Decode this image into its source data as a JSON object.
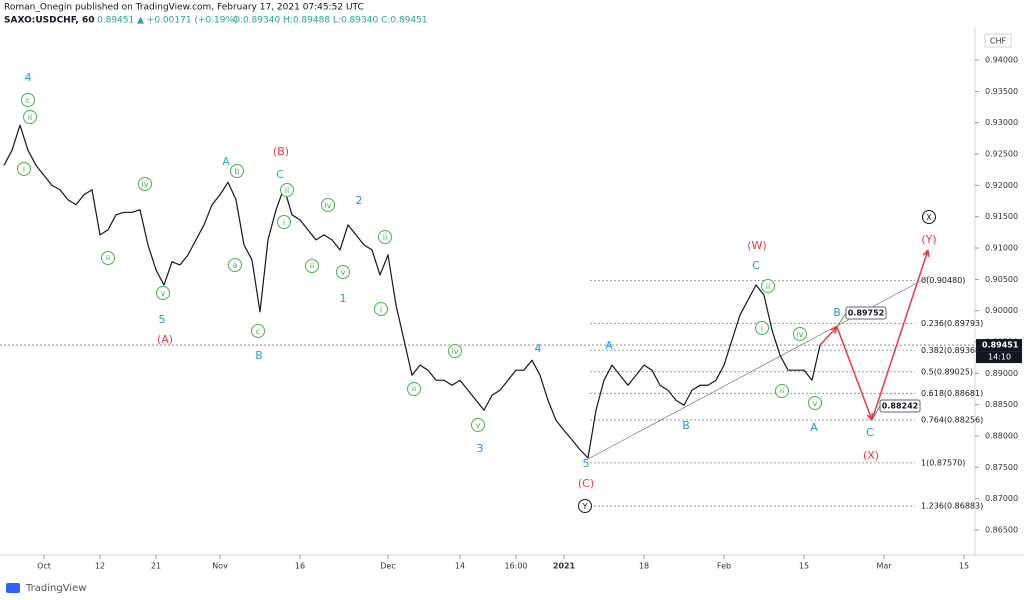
{
  "chart_data": {
    "type": "line",
    "header": {
      "publisher": "Roman_Onegin published on TradingView.com, February 17, 2021 07:45:52 UTC",
      "symbol": "SAXO:USDCHF, 60",
      "last": "0.89451",
      "change": "▲ +0.00171 (+0.19%)",
      "ohlc": "O:0.89340 H:0.89488 L:0.89340 C:0.89451"
    },
    "currency": "CHF",
    "price_label": "0.89451",
    "time_label": "14:10",
    "logo": "TradingView",
    "ylim": [
      0.861,
      0.9448
    ],
    "yticks": [
      {
        "value": 0.865,
        "label": "0.86500"
      },
      {
        "value": 0.87,
        "label": "0.87000"
      },
      {
        "value": 0.875,
        "label": "0.87500"
      },
      {
        "value": 0.88,
        "label": "0.88000"
      },
      {
        "value": 0.885,
        "label": "0.88500"
      },
      {
        "value": 0.89,
        "label": "0.89000"
      },
      {
        "value": 0.895,
        "label": "0.89500"
      },
      {
        "value": 0.9,
        "label": "0.90000"
      },
      {
        "value": 0.905,
        "label": "0.90500"
      },
      {
        "value": 0.91,
        "label": "0.91000"
      },
      {
        "value": 0.915,
        "label": "0.91500"
      },
      {
        "value": 0.92,
        "label": "0.92000"
      },
      {
        "value": 0.925,
        "label": "0.92500"
      },
      {
        "value": 0.93,
        "label": "0.93000"
      },
      {
        "value": 0.935,
        "label": "0.93500"
      },
      {
        "value": 0.94,
        "label": "0.94000"
      }
    ],
    "categories": [
      null,
      null,
      null,
      null,
      null,
      "Oct",
      null,
      null,
      null,
      null,
      null,
      null,
      "12",
      null,
      null,
      null,
      null,
      null,
      null,
      "21",
      null,
      null,
      null,
      null,
      null,
      null,
      null,
      "Nov",
      null,
      null,
      null,
      null,
      null,
      null,
      null,
      null,
      null,
      "16",
      null,
      null,
      null,
      null,
      null,
      null,
      null,
      null,
      null,
      null,
      "Dec",
      null,
      null,
      null,
      null,
      null,
      null,
      null,
      null,
      "14",
      null,
      null,
      null,
      null,
      null,
      null,
      "16:00",
      null,
      null,
      null,
      null,
      null,
      "2021",
      null,
      null,
      null,
      null,
      null,
      null,
      null,
      null,
      null,
      "18",
      null,
      null,
      null,
      null,
      null,
      null,
      null,
      null,
      null,
      "Feb",
      null,
      null,
      null,
      null,
      null,
      null,
      null,
      null,
      null,
      "15",
      null,
      null,
      null,
      null,
      null,
      null,
      null,
      null,
      null,
      "Mar",
      null,
      null,
      null,
      null,
      null,
      null,
      null,
      null,
      null,
      "15"
    ],
    "series": [
      {
        "name": "USDCHF",
        "color": "#131722",
        "values": [
          0.9232,
          0.9256,
          0.9296,
          0.9256,
          0.9232,
          0.9216,
          0.92,
          0.9193,
          0.9177,
          0.9169,
          0.9185,
          0.9193,
          0.9121,
          0.9129,
          0.9153,
          0.9157,
          0.9157,
          0.9161,
          0.9105,
          0.9065,
          0.9041,
          0.9078,
          0.9073,
          0.9089,
          0.9113,
          0.9137,
          0.9169,
          0.9185,
          0.9205,
          0.9177,
          0.9105,
          0.9081,
          0.8998,
          0.9113,
          0.9161,
          0.9196,
          0.9153,
          0.9145,
          0.9129,
          0.9113,
          0.9121,
          0.9113,
          0.9097,
          0.9137,
          0.9121,
          0.9105,
          0.9097,
          0.9057,
          0.9089,
          0.9009,
          0.8953,
          0.8897,
          0.8913,
          0.8905,
          0.8889,
          0.8889,
          0.8881,
          0.8889,
          0.8873,
          0.8857,
          0.8841,
          0.8865,
          0.8873,
          0.8889,
          0.8905,
          0.8905,
          0.8921,
          0.8897,
          0.8857,
          0.8825,
          0.8809,
          0.8794,
          0.8778,
          0.8765,
          0.8841,
          0.8889,
          0.8913,
          0.8897,
          0.8881,
          0.8897,
          0.8913,
          0.8905,
          0.8881,
          0.8873,
          0.8857,
          0.8849,
          0.8873,
          0.8881,
          0.8881,
          0.8889,
          0.8913,
          0.8953,
          0.8993,
          0.9017,
          0.9041,
          0.9025,
          0.8969,
          0.8929,
          0.8905,
          0.8905,
          0.8905,
          0.8889,
          0.8945,
          null,
          null,
          null,
          null,
          null,
          null,
          null,
          null,
          null,
          null,
          null,
          null,
          null,
          null,
          null,
          null,
          null,
          null
        ]
      }
    ],
    "fib_levels": [
      {
        "label": "0(0.90480)",
        "value": 0.9048
      },
      {
        "label": "0.236(0.89793)",
        "value": 0.89793
      },
      {
        "label": "0.382(0.89368)",
        "value": 0.89368
      },
      {
        "label": "0.5(0.89025)",
        "value": 0.89025
      },
      {
        "label": "0.618(0.88681)",
        "value": 0.88681
      },
      {
        "label": "0.764(0.88256)",
        "value": 0.88256
      },
      {
        "label": "1(0.87570)",
        "value": 0.8757
      },
      {
        "label": "1.236(0.86883)",
        "value": 0.86883
      }
    ],
    "callouts": [
      {
        "label": "0.89752",
        "value": 0.89752
      },
      {
        "label": "0.88242",
        "value": 0.88242
      }
    ],
    "current_price": 0.89451,
    "wave_labels": [
      {
        "text": "4",
        "color": "#2196f3",
        "circled": false
      },
      {
        "text": "5",
        "color": "#2196f3",
        "circled": false
      },
      {
        "text": "A",
        "color": "#26a6d1",
        "circled": false
      },
      {
        "text": "C",
        "color": "#26a6d1",
        "circled": false
      },
      {
        "text": "2",
        "color": "#2196f3",
        "circled": false
      },
      {
        "text": "1",
        "color": "#2196f3",
        "circled": false
      },
      {
        "text": "B",
        "color": "#26a6d1",
        "circled": false
      },
      {
        "text": "4",
        "color": "#2196f3",
        "circled": false
      },
      {
        "text": "3",
        "color": "#2196f3",
        "circled": false
      },
      {
        "text": "5",
        "color": "#2196f3",
        "circled": false
      },
      {
        "text": "A",
        "color": "#2196f3",
        "circled": false
      },
      {
        "text": "B",
        "color": "#2196f3",
        "circled": false
      },
      {
        "text": "C",
        "color": "#2196f3",
        "circled": false
      },
      {
        "text": "B",
        "color": "#2196f3",
        "circled": false
      },
      {
        "text": "A",
        "color": "#2196f3",
        "circled": false
      },
      {
        "text": "C",
        "color": "#2196f3",
        "circled": false
      },
      {
        "text": "(B)",
        "color": "#f23645",
        "circled": false
      },
      {
        "text": "(A)",
        "color": "#f23645",
        "circled": false
      },
      {
        "text": "(C)",
        "color": "#f23645",
        "circled": false
      },
      {
        "text": "(W)",
        "color": "#f23645",
        "circled": false
      },
      {
        "text": "(Y)",
        "color": "#f23645",
        "circled": false
      },
      {
        "text": "(X)",
        "color": "#f23645",
        "circled": false
      },
      {
        "text": "c",
        "color": "#4caf50",
        "circled": true
      },
      {
        "text": "ii",
        "color": "#4caf50",
        "circled": true
      },
      {
        "text": "i",
        "color": "#4caf50",
        "circled": true
      },
      {
        "text": "iv",
        "color": "#4caf50",
        "circled": true
      },
      {
        "text": "iii",
        "color": "#4caf50",
        "circled": true
      },
      {
        "text": "v",
        "color": "#4caf50",
        "circled": true
      },
      {
        "text": "b",
        "color": "#4caf50",
        "circled": true
      },
      {
        "text": "a",
        "color": "#4caf50",
        "circled": true
      },
      {
        "text": "c",
        "color": "#4caf50",
        "circled": true
      },
      {
        "text": "ii",
        "color": "#4caf50",
        "circled": true
      },
      {
        "text": "i",
        "color": "#4caf50",
        "circled": true
      },
      {
        "text": "iv",
        "color": "#4caf50",
        "circled": true
      },
      {
        "text": "iii",
        "color": "#4caf50",
        "circled": true
      },
      {
        "text": "v",
        "color": "#4caf50",
        "circled": true
      },
      {
        "text": "ii",
        "color": "#4caf50",
        "circled": true
      },
      {
        "text": "i",
        "color": "#4caf50",
        "circled": true
      },
      {
        "text": "iv",
        "color": "#4caf50",
        "circled": true
      },
      {
        "text": "iii",
        "color": "#4caf50",
        "circled": true
      },
      {
        "text": "v",
        "color": "#4caf50",
        "circled": true
      },
      {
        "text": "ii",
        "color": "#4caf50",
        "circled": true
      },
      {
        "text": "i",
        "color": "#4caf50",
        "circled": true
      },
      {
        "text": "iv",
        "color": "#4caf50",
        "circled": true
      },
      {
        "text": "iii",
        "color": "#4caf50",
        "circled": true
      },
      {
        "text": "v",
        "color": "#4caf50",
        "circled": true
      },
      {
        "text": "X",
        "color": "#131722",
        "circled": true
      },
      {
        "text": "Y",
        "color": "#131722",
        "circled": true
      }
    ]
  }
}
